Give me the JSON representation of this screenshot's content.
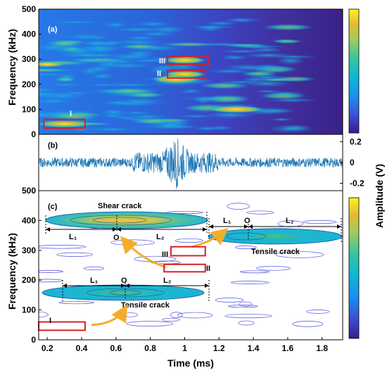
{
  "chart_data": [
    {
      "panel": "(a)",
      "type": "heatmap",
      "ylabel": "Frequency (kHz)",
      "ylim": [
        0,
        500
      ],
      "y_ticks": [
        "0",
        "100",
        "200",
        "300",
        "400",
        "500"
      ],
      "xlim": [
        0.15,
        1.92
      ],
      "colorbar": {
        "label": "Amplitude",
        "colors": [
          "#3e1a8e",
          "#3a54d6",
          "#1a8ff0",
          "#10b6d3",
          "#33c6a0",
          "#9dcb5c",
          "#e2bb32",
          "#f9f420"
        ]
      },
      "regions": [
        {
          "label": "I",
          "x": [
            0.18,
            0.42
          ],
          "y": [
            25,
            60
          ]
        },
        {
          "label": "II",
          "x": [
            0.9,
            1.12
          ],
          "y": [
            225,
            255
          ]
        },
        {
          "label": "III",
          "x": [
            0.9,
            1.14
          ],
          "y": [
            280,
            312
          ]
        }
      ]
    },
    {
      "panel": "(b)",
      "type": "line",
      "ylabel": "Amplitude (V)",
      "ylim": [
        -0.27,
        0.27
      ],
      "y_ticks": [
        "-0.2",
        "0",
        "0.2"
      ],
      "xlim": [
        0.15,
        1.92
      ],
      "notes": "Acoustic emission waveform; background ±0.05 V, burst near 0.95 ms reaching ±0.26 V"
    },
    {
      "panel": "(c)",
      "type": "scatter",
      "xlabel": "Time (ms)",
      "ylabel": "Frequency (kHz)",
      "xlim": [
        0.15,
        1.92
      ],
      "ylim": [
        0,
        500
      ],
      "x_ticks": [
        "0.2",
        "0.4",
        "0.6",
        "0.8",
        "1",
        "1.2",
        "1.4",
        "1.6",
        "1.8"
      ],
      "y_ticks": [
        "0",
        "100",
        "200",
        "300",
        "400",
        "500"
      ],
      "cracks": [
        {
          "name": "Shear crack",
          "center_x": 0.6,
          "center_freq": 402,
          "x": [
            0.15,
            1.12
          ]
        },
        {
          "name": "Tensile crack",
          "center_x": 1.35,
          "center_freq": 348,
          "x": [
            1.12,
            1.92
          ]
        },
        {
          "name": "Tensile crack",
          "center_x": 0.63,
          "center_freq": 158,
          "x": [
            0.25,
            1.12
          ]
        }
      ],
      "regions": [
        {
          "label": "I",
          "x": [
            0.15,
            0.42
          ],
          "y": [
            32,
            60
          ]
        },
        {
          "label": "II",
          "x": [
            0.88,
            1.12
          ],
          "y": [
            228,
            253
          ]
        },
        {
          "label": "III",
          "x": [
            0.92,
            1.12
          ],
          "y": [
            282,
            312
          ]
        }
      ]
    }
  ],
  "labels": {
    "panel_a": "(a)",
    "panel_b": "(b)",
    "panel_c": "(c)",
    "shear_crack": "Shear crack",
    "tensile_crack": "Tensile crack",
    "L1": "L₁",
    "L2": "L₂",
    "O": "O",
    "reg_I": "I",
    "reg_II": "II",
    "reg_III": "III",
    "ylabel_freq": "Frequency (kHz)",
    "ylabel_amp": "Amplitude (V)",
    "colorbar_label": "Amplitude (V)",
    "xlabel": "Time (ms)"
  }
}
